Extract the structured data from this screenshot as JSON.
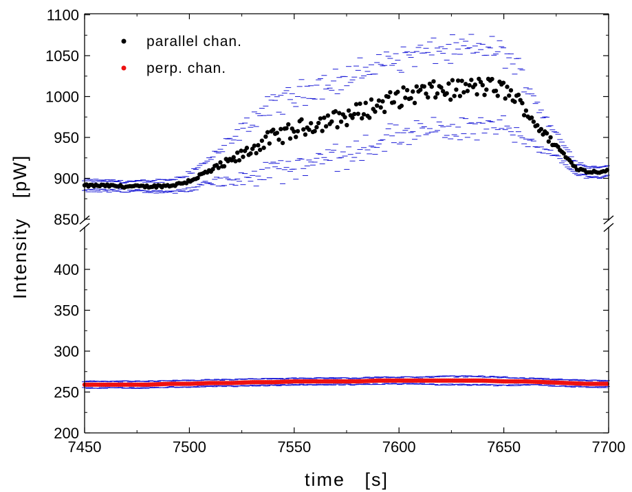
{
  "chart_data": {
    "type": "scatter",
    "title": "",
    "xlabel": "time   [s]",
    "ylabel": "Intensity   [pW]",
    "xlim": [
      7450,
      7700
    ],
    "x_ticks": [
      "7450",
      "7500",
      "7550",
      "7600",
      "7650",
      "7700"
    ],
    "broken_y_axis": true,
    "upper_panel": {
      "ylim": [
        850,
        1100
      ],
      "y_ticks": [
        "850",
        "900",
        "950",
        "1000",
        "1050",
        "1100"
      ]
    },
    "lower_panel": {
      "ylim": [
        200,
        450
      ],
      "y_ticks": [
        "200",
        "250",
        "300",
        "350",
        "400"
      ]
    },
    "legend": {
      "position": "top-left"
    },
    "error_bar_marker": "horizontal dash",
    "error_bar_color": "#1a1ad6",
    "series": [
      {
        "name": "parallel chan.",
        "color": "#000000",
        "panel": "upper",
        "x": [
          7450,
          7460,
          7470,
          7480,
          7490,
          7495,
          7500,
          7505,
          7510,
          7515,
          7520,
          7525,
          7530,
          7535,
          7540,
          7545,
          7550,
          7555,
          7560,
          7565,
          7570,
          7575,
          7580,
          7585,
          7590,
          7595,
          7600,
          7605,
          7610,
          7615,
          7620,
          7625,
          7630,
          7635,
          7640,
          7645,
          7650,
          7655,
          7660,
          7665,
          7670,
          7675,
          7680,
          7685,
          7690,
          7695,
          7700
        ],
        "y": [
          891,
          891,
          890,
          890,
          891,
          893,
          897,
          903,
          909,
          915,
          921,
          928,
          936,
          944,
          950,
          954,
          958,
          963,
          967,
          970,
          972,
          976,
          980,
          985,
          990,
          994,
          998,
          1002,
          1005,
          1006,
          1008,
          1008,
          1010,
          1011,
          1012,
          1011,
          1008,
          1000,
          985,
          968,
          952,
          940,
          925,
          912,
          908,
          908,
          910
        ],
        "y_error": [
          6,
          6,
          6,
          6,
          7,
          8,
          10,
          12,
          15,
          20,
          25,
          30,
          35,
          38,
          40,
          42,
          43,
          44,
          45,
          46,
          46,
          47,
          47,
          48,
          48,
          48,
          48,
          48,
          48,
          48,
          48,
          48,
          48,
          48,
          48,
          47,
          45,
          42,
          35,
          28,
          20,
          14,
          10,
          7,
          6,
          6,
          6
        ]
      },
      {
        "name": "perp. chan.",
        "color": "#ee1111",
        "panel": "lower",
        "x": [
          7450,
          7460,
          7470,
          7480,
          7490,
          7500,
          7510,
          7520,
          7530,
          7540,
          7550,
          7560,
          7570,
          7580,
          7590,
          7600,
          7610,
          7620,
          7630,
          7640,
          7650,
          7660,
          7670,
          7680,
          7690,
          7700
        ],
        "y": [
          259,
          259,
          259,
          259,
          260,
          260,
          261,
          261,
          262,
          262,
          263,
          263,
          263,
          263,
          264,
          264,
          264,
          264,
          264,
          264,
          263,
          263,
          262,
          261,
          260,
          260
        ],
        "y_error": [
          4,
          4,
          4,
          4,
          4,
          4,
          4,
          4,
          4,
          4,
          4,
          4,
          4,
          4,
          4,
          4,
          4,
          5,
          5,
          5,
          5,
          4,
          4,
          4,
          4,
          4
        ]
      }
    ]
  }
}
